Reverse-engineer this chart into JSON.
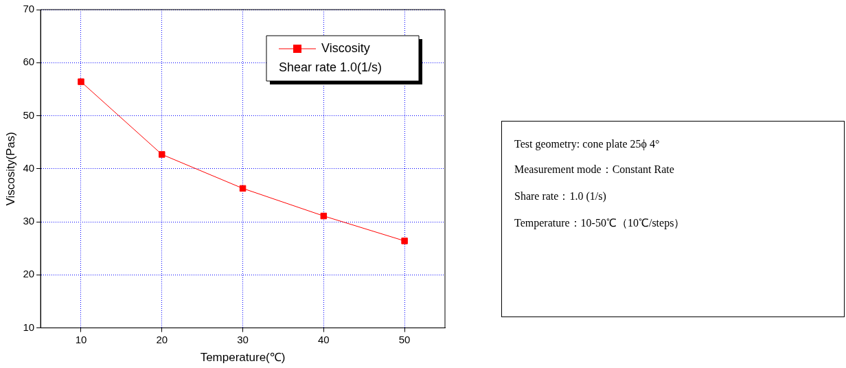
{
  "chart_data": [
    {
      "type": "line",
      "xlabel": "Temperature(℃)",
      "ylabel": "Viscosity(Pas)",
      "x": [
        10,
        20,
        30,
        40,
        50
      ],
      "series": [
        {
          "name": "Viscosity",
          "color": "#ff0000",
          "values": [
            56.4,
            42.7,
            36.3,
            31.1,
            26.4
          ]
        }
      ],
      "xlim": [
        5,
        55
      ],
      "xticks": [
        10,
        20,
        30,
        40,
        50
      ],
      "ylim": [
        10,
        70
      ],
      "yticks": [
        10,
        20,
        30,
        40,
        50,
        60,
        70
      ],
      "grid": true,
      "legend": "top right",
      "marker": "square",
      "line_style": "solid",
      "annotations": [
        "Shear rate 1.0(1/s)"
      ]
    },
    {
      "type": "other",
      "annotations": [
        "Test geometry: cone plate 25ϕ  4°",
        "Measurement mode：Constant Rate",
        "Share rate：1.0 (1/s)",
        "Temperature：10-50℃（10℃/steps）"
      ]
    }
  ]
}
